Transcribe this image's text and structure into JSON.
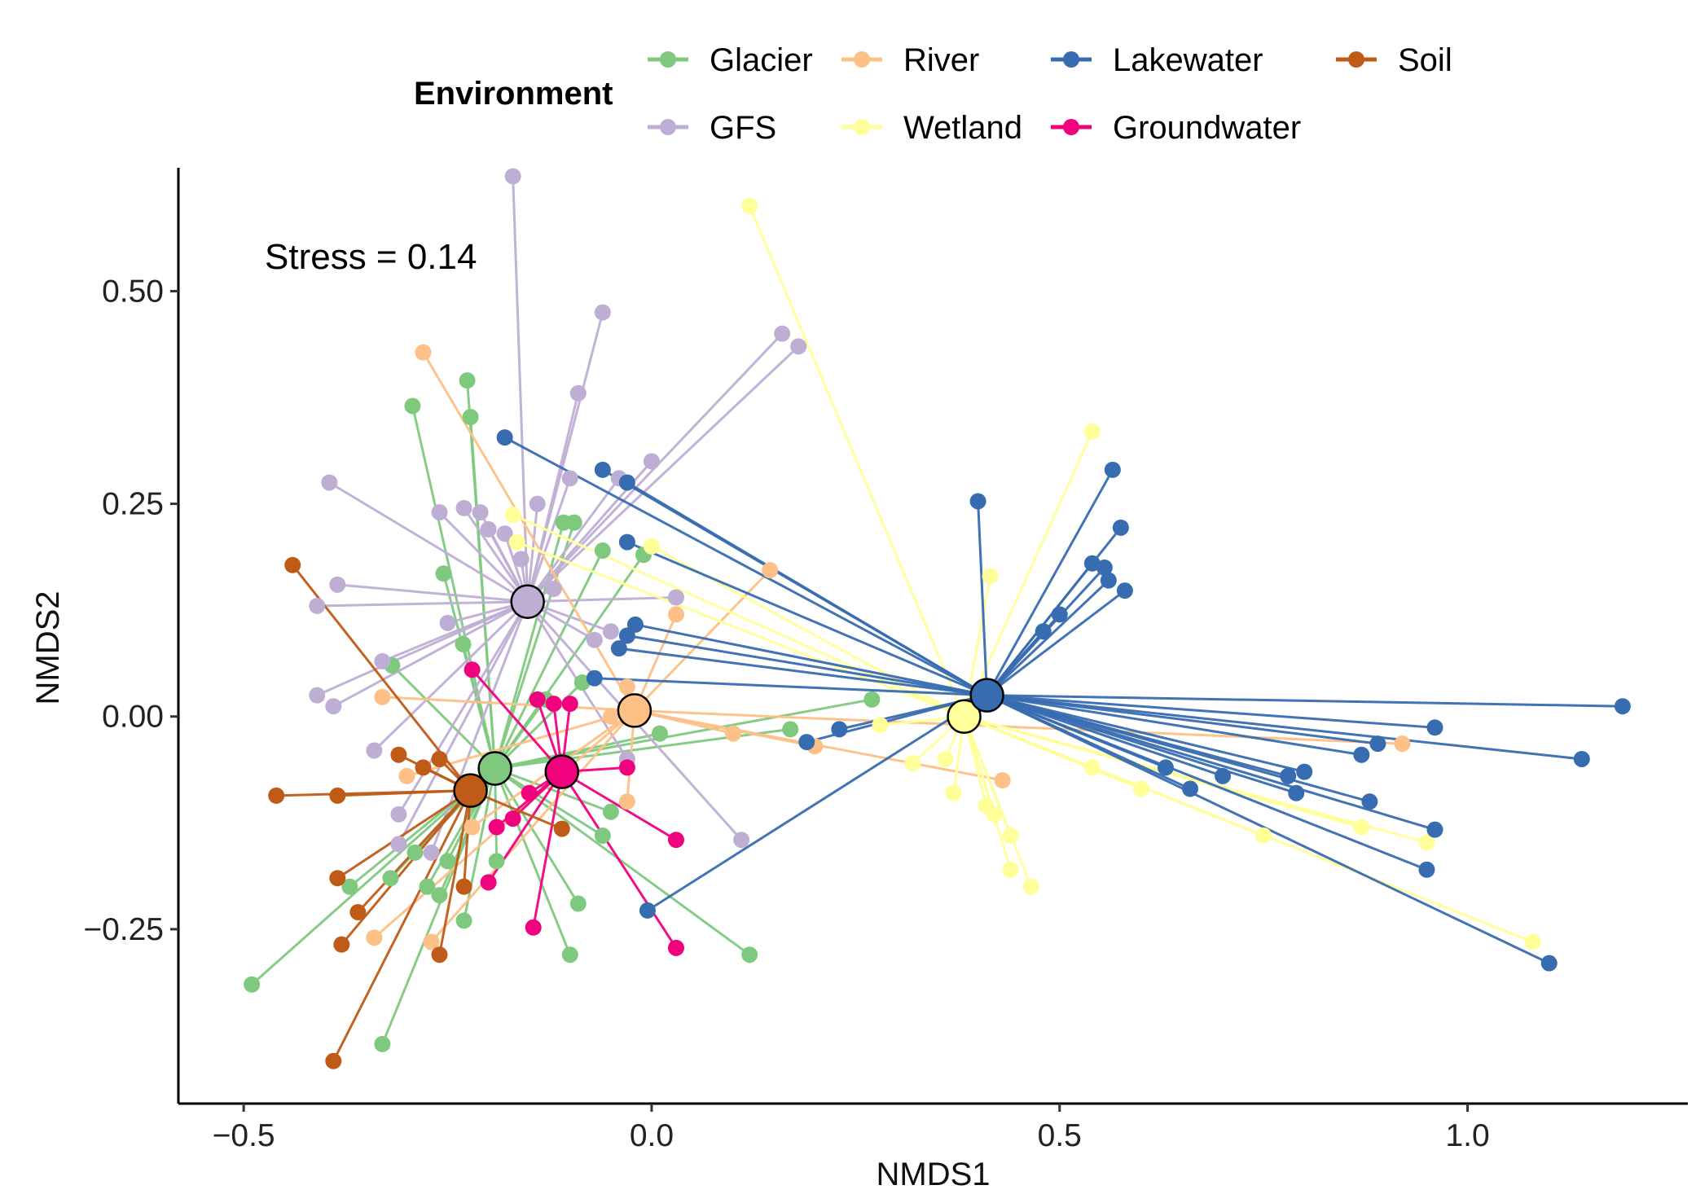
{
  "chart_data": {
    "type": "scatter",
    "subtype": "NMDS ordination spider plot (points connected to group centroids)",
    "title": "",
    "xlabel": "NMDS1",
    "ylabel": "NMDS2",
    "xlim": [
      -0.58,
      1.27
    ],
    "ylim": [
      -0.455,
      0.645
    ],
    "xticks": [
      -0.5,
      0.0,
      0.5,
      1.0
    ],
    "xtick_labels": [
      "−0.5",
      "0.0",
      "0.5",
      "1.0"
    ],
    "yticks": [
      -0.25,
      0.0,
      0.25,
      0.5
    ],
    "ytick_labels": [
      "−0.25",
      "0.00",
      "0.25",
      "0.50"
    ],
    "grid": false,
    "annotation": "Stress = 0.14",
    "legend": {
      "title": "Environment",
      "placement": "top",
      "entries": [
        "Glacier",
        "River",
        "Lakewater",
        "Soil",
        "GFS",
        "Wetland",
        "Groundwater"
      ]
    },
    "series": [
      {
        "name": "Glacier",
        "color": "#7FC97F",
        "centroid": [
          -0.192,
          -0.061
        ],
        "points": [
          [
            -0.293,
            0.365
          ],
          [
            -0.226,
            0.395
          ],
          [
            -0.222,
            0.352
          ],
          [
            -0.255,
            0.168
          ],
          [
            -0.108,
            0.228
          ],
          [
            -0.095,
            0.228
          ],
          [
            -0.06,
            0.195
          ],
          [
            -0.01,
            0.19
          ],
          [
            -0.231,
            0.085
          ],
          [
            -0.318,
            0.06
          ],
          [
            -0.085,
            0.04
          ],
          [
            0.27,
            0.02
          ],
          [
            0.17,
            -0.015
          ],
          [
            -0.05,
            -0.112
          ],
          [
            -0.09,
            -0.22
          ],
          [
            -0.1,
            -0.28
          ],
          [
            0.12,
            -0.28
          ],
          [
            -0.49,
            -0.315
          ],
          [
            -0.33,
            -0.385
          ],
          [
            -0.37,
            -0.2
          ],
          [
            -0.32,
            -0.19
          ],
          [
            -0.275,
            -0.2
          ],
          [
            -0.26,
            -0.21
          ],
          [
            -0.23,
            -0.24
          ],
          [
            -0.25,
            -0.17
          ],
          [
            -0.19,
            -0.17
          ],
          [
            -0.06,
            -0.14
          ],
          [
            -0.13,
            0.02
          ],
          [
            0.01,
            -0.02
          ],
          [
            -0.29,
            -0.16
          ]
        ]
      },
      {
        "name": "GFS",
        "color": "#BEAED4",
        "centroid": [
          -0.152,
          0.135
        ],
        "points": [
          [
            -0.17,
            0.635
          ],
          [
            -0.06,
            0.475
          ],
          [
            -0.09,
            0.38
          ],
          [
            0.16,
            0.45
          ],
          [
            0.18,
            0.435
          ],
          [
            0.0,
            0.3
          ],
          [
            -0.04,
            0.28
          ],
          [
            -0.1,
            0.28
          ],
          [
            -0.395,
            0.275
          ],
          [
            -0.385,
            0.155
          ],
          [
            -0.41,
            0.13
          ],
          [
            -0.26,
            0.24
          ],
          [
            -0.23,
            0.245
          ],
          [
            -0.21,
            0.24
          ],
          [
            -0.14,
            0.25
          ],
          [
            -0.18,
            0.215
          ],
          [
            -0.2,
            0.22
          ],
          [
            -0.16,
            0.185
          ],
          [
            0.03,
            0.14
          ],
          [
            -0.41,
            0.025
          ],
          [
            -0.39,
            0.012
          ],
          [
            -0.33,
            0.065
          ],
          [
            -0.31,
            -0.115
          ],
          [
            -0.31,
            -0.15
          ],
          [
            0.11,
            -0.145
          ],
          [
            -0.27,
            -0.16
          ],
          [
            -0.34,
            -0.04
          ],
          [
            -0.07,
            0.09
          ],
          [
            -0.05,
            0.1
          ],
          [
            -0.25,
            0.11
          ],
          [
            -0.12,
            0.15
          ],
          [
            -0.03,
            -0.05
          ]
        ]
      },
      {
        "name": "River",
        "color": "#FDC086",
        "centroid": [
          -0.021,
          0.007
        ],
        "points": [
          [
            -0.28,
            0.428
          ],
          [
            0.145,
            0.172
          ],
          [
            0.03,
            0.12
          ],
          [
            -0.33,
            0.023
          ],
          [
            -0.03,
            0.035
          ],
          [
            -0.03,
            -0.1
          ],
          [
            0.43,
            -0.075
          ],
          [
            0.92,
            -0.032
          ],
          [
            -0.34,
            -0.26
          ],
          [
            -0.27,
            -0.265
          ],
          [
            -0.22,
            -0.13
          ],
          [
            -0.3,
            -0.07
          ],
          [
            0.2,
            -0.035
          ],
          [
            0.1,
            -0.02
          ],
          [
            -0.05,
            0.0
          ]
        ]
      },
      {
        "name": "Wetland",
        "color": "#FFFF99",
        "centroid": [
          0.383,
          0.0
        ],
        "points": [
          [
            0.12,
            0.6
          ],
          [
            0.54,
            0.335
          ],
          [
            0.415,
            0.165
          ],
          [
            -0.17,
            0.237
          ],
          [
            -0.165,
            0.205
          ],
          [
            0.0,
            0.2
          ],
          [
            0.32,
            -0.055
          ],
          [
            0.37,
            -0.09
          ],
          [
            0.41,
            -0.105
          ],
          [
            0.42,
            -0.115
          ],
          [
            0.44,
            -0.14
          ],
          [
            0.44,
            -0.18
          ],
          [
            0.465,
            -0.2
          ],
          [
            0.6,
            -0.085
          ],
          [
            0.75,
            -0.14
          ],
          [
            0.87,
            -0.13
          ],
          [
            0.95,
            -0.148
          ],
          [
            1.08,
            -0.265
          ],
          [
            0.28,
            -0.01
          ],
          [
            0.36,
            -0.05
          ],
          [
            0.54,
            -0.06
          ]
        ]
      },
      {
        "name": "Lakewater",
        "color": "#386CB0",
        "centroid": [
          0.411,
          0.025
        ],
        "points": [
          [
            -0.18,
            0.328
          ],
          [
            -0.06,
            0.29
          ],
          [
            -0.03,
            0.275
          ],
          [
            -0.03,
            0.205
          ],
          [
            0.4,
            0.253
          ],
          [
            0.565,
            0.29
          ],
          [
            0.575,
            0.222
          ],
          [
            0.54,
            0.18
          ],
          [
            0.555,
            0.175
          ],
          [
            0.56,
            0.16
          ],
          [
            0.58,
            0.148
          ],
          [
            0.5,
            0.12
          ],
          [
            0.48,
            0.1
          ],
          [
            -0.03,
            0.095
          ],
          [
            -0.02,
            0.108
          ],
          [
            -0.04,
            0.08
          ],
          [
            -0.07,
            0.045
          ],
          [
            -0.005,
            -0.228
          ],
          [
            1.19,
            0.012
          ],
          [
            0.96,
            -0.013
          ],
          [
            0.89,
            -0.032
          ],
          [
            1.14,
            -0.05
          ],
          [
            0.87,
            -0.045
          ],
          [
            0.78,
            -0.07
          ],
          [
            0.8,
            -0.065
          ],
          [
            0.79,
            -0.09
          ],
          [
            0.88,
            -0.1
          ],
          [
            0.96,
            -0.133
          ],
          [
            0.95,
            -0.18
          ],
          [
            1.1,
            -0.29
          ],
          [
            0.66,
            -0.085
          ],
          [
            0.7,
            -0.07
          ],
          [
            0.63,
            -0.06
          ],
          [
            0.19,
            -0.03
          ],
          [
            0.23,
            -0.015
          ]
        ]
      },
      {
        "name": "Groundwater",
        "color": "#F0027F",
        "centroid": [
          -0.11,
          -0.065
        ],
        "points": [
          [
            -0.22,
            0.055
          ],
          [
            -0.14,
            0.02
          ],
          [
            -0.1,
            0.015
          ],
          [
            -0.03,
            -0.06
          ],
          [
            0.03,
            -0.145
          ],
          [
            0.03,
            -0.272
          ],
          [
            -0.145,
            -0.248
          ],
          [
            -0.19,
            -0.13
          ],
          [
            -0.17,
            -0.12
          ],
          [
            -0.2,
            -0.195
          ],
          [
            -0.15,
            -0.09
          ],
          [
            -0.12,
            0.015
          ]
        ]
      },
      {
        "name": "Soil",
        "color": "#BF5B17",
        "centroid": [
          -0.222,
          -0.087
        ],
        "points": [
          [
            -0.44,
            0.178
          ],
          [
            -0.46,
            -0.093
          ],
          [
            -0.385,
            -0.093
          ],
          [
            -0.31,
            -0.045
          ],
          [
            -0.28,
            -0.06
          ],
          [
            -0.385,
            -0.19
          ],
          [
            -0.36,
            -0.23
          ],
          [
            -0.38,
            -0.268
          ],
          [
            -0.26,
            -0.28
          ],
          [
            -0.39,
            -0.405
          ],
          [
            -0.11,
            -0.132
          ],
          [
            -0.26,
            -0.05
          ],
          [
            -0.23,
            -0.2
          ]
        ]
      }
    ]
  }
}
